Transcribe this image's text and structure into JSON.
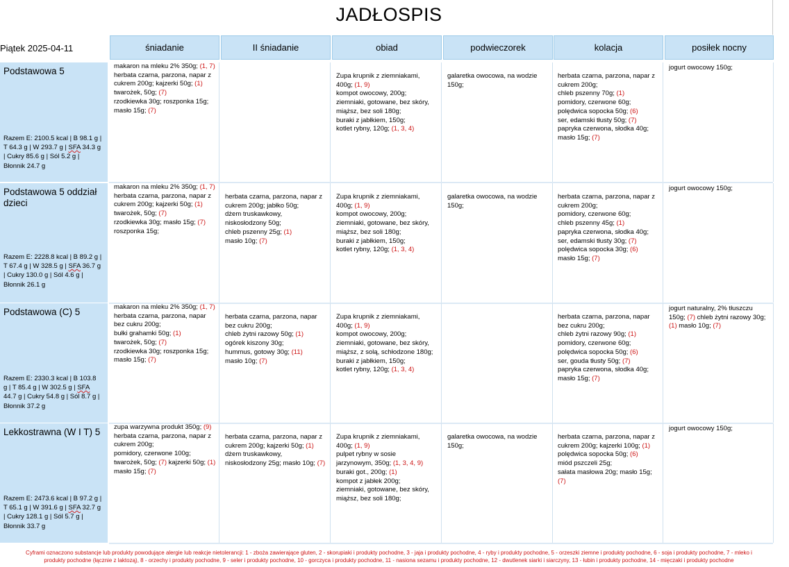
{
  "title": "JADŁOSPIS",
  "date": "Piątek 2025-04-11",
  "columns": [
    "śniadanie",
    "II śniadanie",
    "obiad",
    "podwieczorek",
    "kolacja",
    "posiłek nocny"
  ],
  "rows": [
    {
      "name": "Podstawowa 5",
      "totals": [
        "Razem E: 2100.5 kcal | B 98.1 g |",
        "T 64.3 g | W 293.7 g | ",
        "SFA",
        " 34.3 g",
        "| Cukry 85.6 g | Sól 5.2 g |",
        "Błonnik 24.7 g"
      ],
      "meals": [
        [
          [
            "makaron na mleku 2% 350g; ",
            "(1, 7)"
          ],
          [
            "herbata czarna, parzona, napar z",
            ""
          ],
          [
            "cukrem 200g;  kajzerki 50g; ",
            "(1)"
          ],
          [
            "twarożek, 50g; ",
            "(7)"
          ],
          [
            "rzodkiewka 30g;  roszponka 15g;",
            ""
          ],
          [
            "masło 15g; ",
            "(7)"
          ]
        ],
        [],
        [
          [
            "Zupa krupnik z ziemniakami,",
            ""
          ],
          [
            "400g; ",
            "(1, 9)"
          ],
          [
            "kompot owocowy, 200g;",
            ""
          ],
          [
            "ziemniaki, gotowane, bez skóry,",
            ""
          ],
          [
            "miąższ, bez soli  180g;",
            ""
          ],
          [
            "buraki z jabłkiem, 150g;",
            ""
          ],
          [
            "kotlet rybny, 120g; ",
            "(1, 3, 4)"
          ]
        ],
        [
          [
            "galaretka owocowa, na wodzie",
            ""
          ],
          [
            "150g;",
            ""
          ]
        ],
        [
          [
            "herbata czarna, parzona, napar z",
            ""
          ],
          [
            "cukrem 200g;",
            ""
          ],
          [
            "chleb pszenny 70g; ",
            "(1)"
          ],
          [
            "pomidory, czerwone 60g;",
            ""
          ],
          [
            "polędwica sopocka 50g; ",
            "(6)"
          ],
          [
            "ser, edamski tłusty 50g; ",
            "(7)"
          ],
          [
            "papryka czerwona, słodka 40g;",
            ""
          ],
          [
            "masło 15g; ",
            "(7)"
          ]
        ],
        [
          [
            "jogurt owocowy 150g;",
            ""
          ]
        ]
      ]
    },
    {
      "name": "Podstawowa 5 oddział dzieci",
      "totals": [
        "Razem E: 2228.8 kcal | B 89.2 g |",
        "T 67.4 g | W 328.5 g | ",
        "SFA",
        " 36.7 g",
        "| Cukry 130.0 g | Sól 4.6 g |",
        "Błonnik 26.1 g"
      ],
      "meals": [
        [
          [
            "makaron na mleku 2% 350g; ",
            "(1, 7)"
          ],
          [
            "herbata czarna, parzona, napar z",
            ""
          ],
          [
            "cukrem 200g;  kajzerki 50g; ",
            "(1)"
          ],
          [
            "twarożek, 50g; ",
            "(7)"
          ],
          [
            "rzodkiewka 30g;  masło 15g; ",
            "(7)"
          ],
          [
            "roszponka 15g;",
            ""
          ]
        ],
        [
          [
            "herbata czarna, parzona, napar z",
            ""
          ],
          [
            "cukrem 200g;  jabłko 50g;",
            ""
          ],
          [
            "dżem truskawkowy,",
            ""
          ],
          [
            "niskosłodzony 50g;",
            ""
          ],
          [
            "chleb pszenny 25g; ",
            "(1)"
          ],
          [
            "masło 10g; ",
            "(7)"
          ]
        ],
        [
          [
            "Zupa krupnik z ziemniakami,",
            ""
          ],
          [
            "400g; ",
            "(1, 9)"
          ],
          [
            "kompot owocowy, 200g;",
            ""
          ],
          [
            "ziemniaki, gotowane, bez skóry,",
            ""
          ],
          [
            "miąższ, bez soli  180g;",
            ""
          ],
          [
            "buraki z jabłkiem, 150g;",
            ""
          ],
          [
            "kotlet rybny, 120g; ",
            "(1, 3, 4)"
          ]
        ],
        [
          [
            "galaretka owocowa, na wodzie",
            ""
          ],
          [
            "150g;",
            ""
          ]
        ],
        [
          [
            "herbata czarna, parzona, napar z",
            ""
          ],
          [
            "cukrem 200g;",
            ""
          ],
          [
            "pomidory, czerwone 60g;",
            ""
          ],
          [
            "chleb pszenny 45g; ",
            "(1)"
          ],
          [
            "papryka czerwona, słodka 40g;",
            ""
          ],
          [
            "ser, edamski tłusty 30g; ",
            "(7)"
          ],
          [
            "polędwica sopocka 30g; ",
            "(6)"
          ],
          [
            "masło 15g; ",
            "(7)"
          ]
        ],
        [
          [
            "jogurt owocowy 150g;",
            ""
          ]
        ]
      ]
    },
    {
      "name": "Podstawowa (C) 5",
      "totals": [
        "Razem E: 2330.3 kcal | B 103.8",
        "g | T 85.4 g | W 302.5 g | ",
        "SFA",
        "",
        "44.7 g | Cukry 54.8 g | Sól 8.7 g |",
        "Błonnik 37.2 g"
      ],
      "meals": [
        [
          [
            "makaron na mleku 2% 350g; ",
            "(1, 7)"
          ],
          [
            "herbata czarna, parzona, napar",
            ""
          ],
          [
            "bez cukru 200g;",
            ""
          ],
          [
            "bułki grahamki 50g; ",
            "(1)"
          ],
          [
            "twarożek, 50g; ",
            "(7)"
          ],
          [
            "rzodkiewka 30g;  roszponka 15g;",
            ""
          ],
          [
            "masło 15g; ",
            "(7)"
          ]
        ],
        [
          [
            "herbata czarna, parzona, napar",
            ""
          ],
          [
            "bez cukru 200g;",
            ""
          ],
          [
            "chleb żytni razowy 50g; ",
            "(1)"
          ],
          [
            "ogórek kiszony 30g;",
            ""
          ],
          [
            "hummus, gotowy 30g; ",
            "(11)"
          ],
          [
            "masło 10g; ",
            "(7)"
          ]
        ],
        [
          [
            "Zupa krupnik z ziemniakami,",
            ""
          ],
          [
            "400g; ",
            "(1, 9)"
          ],
          [
            "kompot owocowy, 200g;",
            ""
          ],
          [
            "ziemniaki, gotowane, bez skóry,",
            ""
          ],
          [
            "miąższ, z solą, schłodzone 180g;",
            ""
          ],
          [
            "buraki z jabłkiem, 150g;",
            ""
          ],
          [
            "kotlet rybny, 120g; ",
            "(1, 3, 4)"
          ]
        ],
        [],
        [
          [
            "herbata czarna, parzona, napar",
            ""
          ],
          [
            "bez cukru 200g;",
            ""
          ],
          [
            "chleb żytni razowy 90g; ",
            "(1)"
          ],
          [
            "pomidory, czerwone 60g;",
            ""
          ],
          [
            "polędwica sopocka 50g; ",
            "(6)"
          ],
          [
            "ser, gouda tłusty 50g; ",
            "(7)"
          ],
          [
            "papryka czerwona, słodka 40g;",
            ""
          ],
          [
            "masło 15g; ",
            "(7)"
          ]
        ],
        [
          [
            "jogurt naturalny, 2% tłuszczu",
            ""
          ],
          [
            "150g;  ",
            "(7)",
            " chleb żytni razowy 30g;"
          ],
          [
            "",
            "(1)",
            " masło 10g;  ",
            "(7)"
          ]
        ]
      ]
    },
    {
      "name": "Lekkostrawna (W I T) 5",
      "totals": [
        "Razem E: 2473.6 kcal | B 97.2 g |",
        "T 65.1 g | W 391.6 g | ",
        "SFA",
        " 32.7 g",
        "| Cukry 128.1 g | Sól 5.7 g |",
        "Błonnik 33.7 g"
      ],
      "meals": [
        [
          [
            "zupa warzywna produkt 350g; ",
            "(9)"
          ],
          [
            "herbata czarna, parzona, napar z",
            ""
          ],
          [
            "cukrem 200g;",
            ""
          ],
          [
            "pomidory, czerwone 100g;",
            ""
          ],
          [
            "twarożek, 50g; ",
            "(7)",
            " kajzerki 50g; ",
            "(1)"
          ],
          [
            "masło 15g; ",
            "(7)"
          ]
        ],
        [
          [
            "herbata czarna, parzona, napar z",
            ""
          ],
          [
            "cukrem 200g;  kajzerki 50g; ",
            "(1)"
          ],
          [
            "dżem truskawkowy,",
            ""
          ],
          [
            "niskosłodzony 25g;  masło 10g; ",
            "(7)"
          ]
        ],
        [
          [
            "Zupa krupnik z ziemniakami,",
            ""
          ],
          [
            "400g; ",
            "(1, 9)"
          ],
          [
            "pulpet rybny w sosie",
            ""
          ],
          [
            "jarzynowym, 350g; ",
            "(1, 3, 4, 9)"
          ],
          [
            "buraki got., 200g; ",
            "(1)"
          ],
          [
            "kompot z jabłek 200g;",
            ""
          ],
          [
            "ziemniaki, gotowane, bez skóry,",
            ""
          ],
          [
            "miąższ, bez soli  180g;",
            ""
          ]
        ],
        [
          [
            "galaretka owocowa, na wodzie",
            ""
          ],
          [
            "150g;",
            ""
          ]
        ],
        [
          [
            "herbata czarna, parzona, napar z",
            ""
          ],
          [
            "cukrem 200g;  kajzerki 100g; ",
            "(1)"
          ],
          [
            "polędwica sopocka 50g; ",
            "(6)"
          ],
          [
            "miód pszczeli 25g;",
            ""
          ],
          [
            "sałata masłowa 20g;  masło 15g;",
            ""
          ],
          [
            "",
            "(7)"
          ]
        ],
        [
          [
            "jogurt owocowy 150g;",
            ""
          ]
        ]
      ]
    }
  ],
  "footer_lines": [
    "Cyframi oznaczono substancje lub produkty powodujące alergie lub reakcje nietolerancji: 1 - zboża zawierające gluten, 2 - skorupiaki i produkty pochodne, 3 - jaja i produkty pochodne, 4 - ryby i produkty pochodne, 5 - orzeszki ziemne i produkty pochodne, 6 - soja i produkty pochodne, 7 - mleko i",
    "produkty pochodne (łącznie z laktozą), 8 - orzechy i produkty pochodne, 9 - seler i produkty pochodne, 10 - gorczyca i produkty pochodne, 11 - nasiona sezamu i produkty pochodne, 12 - dwutlenek siarki i siarczyny, 13 - łubin i produkty pochodne, 14 - mięczaki i produkty pochodne"
  ],
  "colors": {
    "header_bg": "#c9e3f6",
    "allergen": "#cc1111"
  }
}
